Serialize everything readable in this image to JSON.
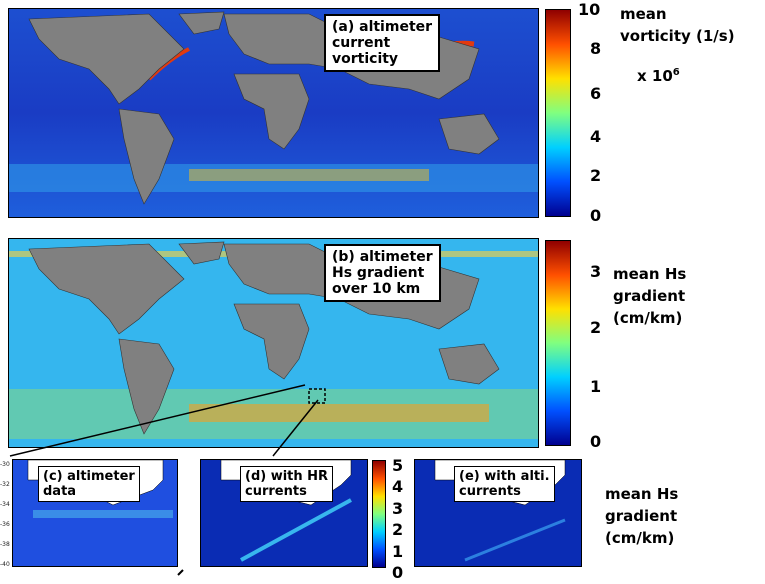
{
  "panels": {
    "a": {
      "label": "(a) altimeter\ncurrent\nvorticity"
    },
    "b": {
      "label": "(b) altimeter\nHs gradient\nover 10 km"
    },
    "c": {
      "label": "(c) altimeter\ndata"
    },
    "d": {
      "label": "(d) with HR\ncurrents"
    },
    "e": {
      "label": "(e) with alti.\ncurrents"
    }
  },
  "colorbar_a": {
    "title": "mean\nvorticity (1/s)",
    "scale_prefix": "x 10",
    "scale_exponent": "6",
    "ticks": [
      "10",
      "8",
      "6",
      "4",
      "2",
      "0"
    ]
  },
  "colorbar_b": {
    "title": "mean Hs\ngradient\n(cm/km)",
    "ticks": [
      "3",
      "2",
      "1",
      "0"
    ]
  },
  "colorbar_small": {
    "ticks": [
      "5",
      "4",
      "3",
      "2",
      "1",
      "0"
    ]
  },
  "small_title": "mean Hs\ngradient\n(cm/km)",
  "lat_ticks": [
    "-30",
    "-32",
    "-34",
    "-36",
    "-38",
    "-40"
  ],
  "colors": {
    "land": "#808080",
    "ocean_low": "#1a3fbf",
    "ocean_mid": "#3aa0e8"
  }
}
